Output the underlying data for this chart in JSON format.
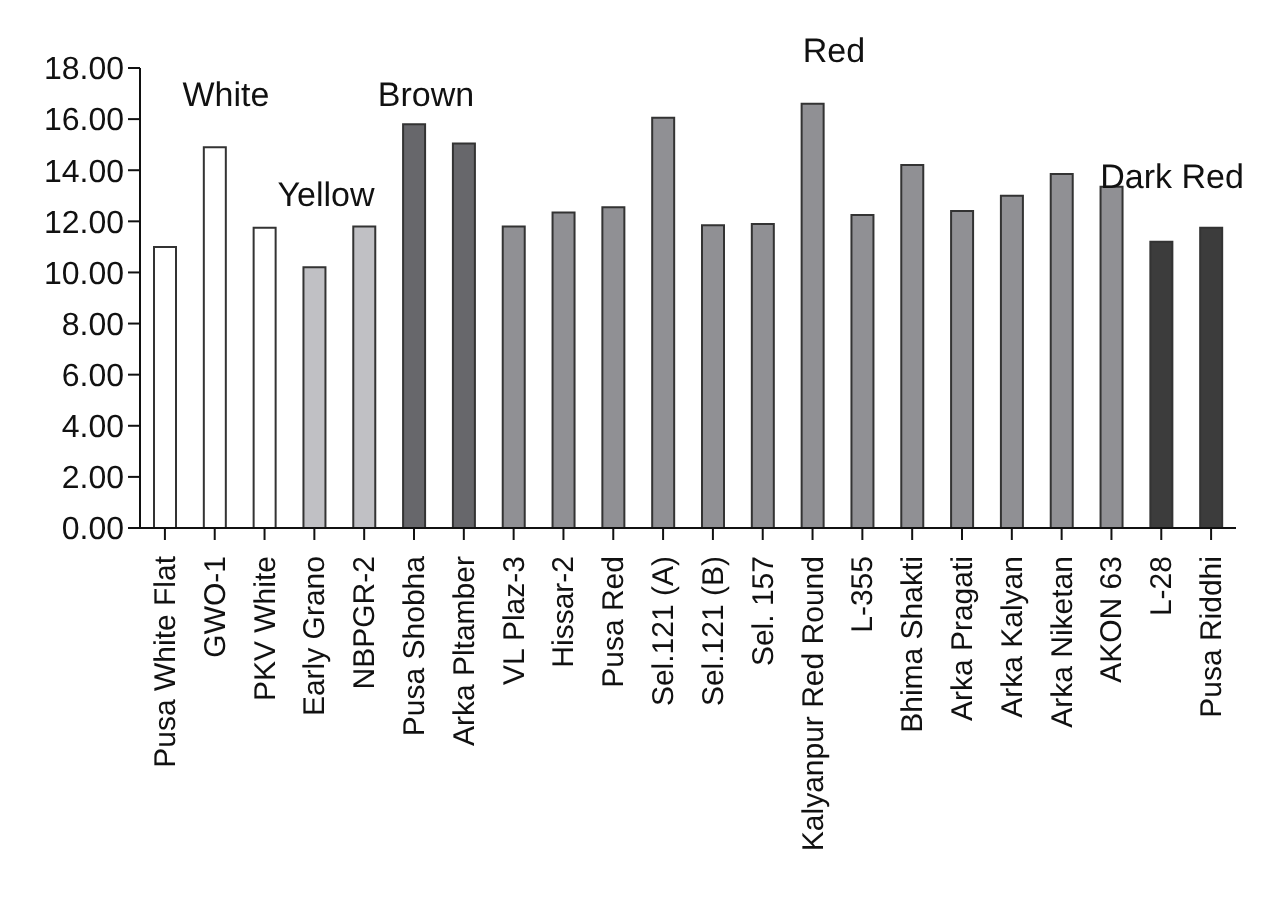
{
  "chart_data": {
    "type": "bar",
    "categories": [
      "Pusa White Flat",
      "GWO-1",
      "PKV White",
      "Early Grano",
      "NBPGR-2",
      "Pusa Shobha",
      "Arka Pltamber",
      "VL Plaz-3",
      "Hissar-2",
      "Pusa Red",
      "Sel.121 (A)",
      "Sel.121 (B)",
      "Sel. 157",
      "Kalyanpur Red Round",
      "L-355",
      "Bhima Shakti",
      "Arka Pragati",
      "Arka Kalyan",
      "Arka Niketan",
      "AKON 63",
      "L-28",
      "Pusa Riddhi"
    ],
    "values": [
      11.0,
      14.9,
      11.75,
      10.2,
      11.8,
      15.8,
      15.05,
      11.8,
      12.35,
      12.55,
      16.05,
      11.85,
      11.9,
      16.6,
      12.25,
      14.2,
      12.4,
      13.0,
      13.85,
      13.35,
      11.2,
      11.75
    ],
    "colors": [
      "#ffffff",
      "#ffffff",
      "#ffffff",
      "#c0c0c4",
      "#c0c0c4",
      "#67676b",
      "#67676b",
      "#909094",
      "#909094",
      "#909094",
      "#909094",
      "#909094",
      "#909094",
      "#909094",
      "#909094",
      "#909094",
      "#909094",
      "#909094",
      "#909094",
      "#909094",
      "#3c3c3c",
      "#3c3c3c"
    ],
    "ylim": [
      0,
      18
    ],
    "yticks": [
      {
        "value": 0,
        "label": "0.00"
      },
      {
        "value": 2,
        "label": "2.00"
      },
      {
        "value": 4,
        "label": "4.00"
      },
      {
        "value": 6,
        "label": "6.00"
      },
      {
        "value": 8,
        "label": "8.00"
      },
      {
        "value": 10,
        "label": "10.00"
      },
      {
        "value": 12,
        "label": "12.00"
      },
      {
        "value": 14,
        "label": "14.00"
      },
      {
        "value": 16,
        "label": "16.00"
      },
      {
        "value": 18,
        "label": "18.00"
      }
    ],
    "annotations": [
      "White",
      "Yellow",
      "Brown",
      "Red",
      "Dark Red"
    ],
    "grid": false,
    "legend": false
  }
}
